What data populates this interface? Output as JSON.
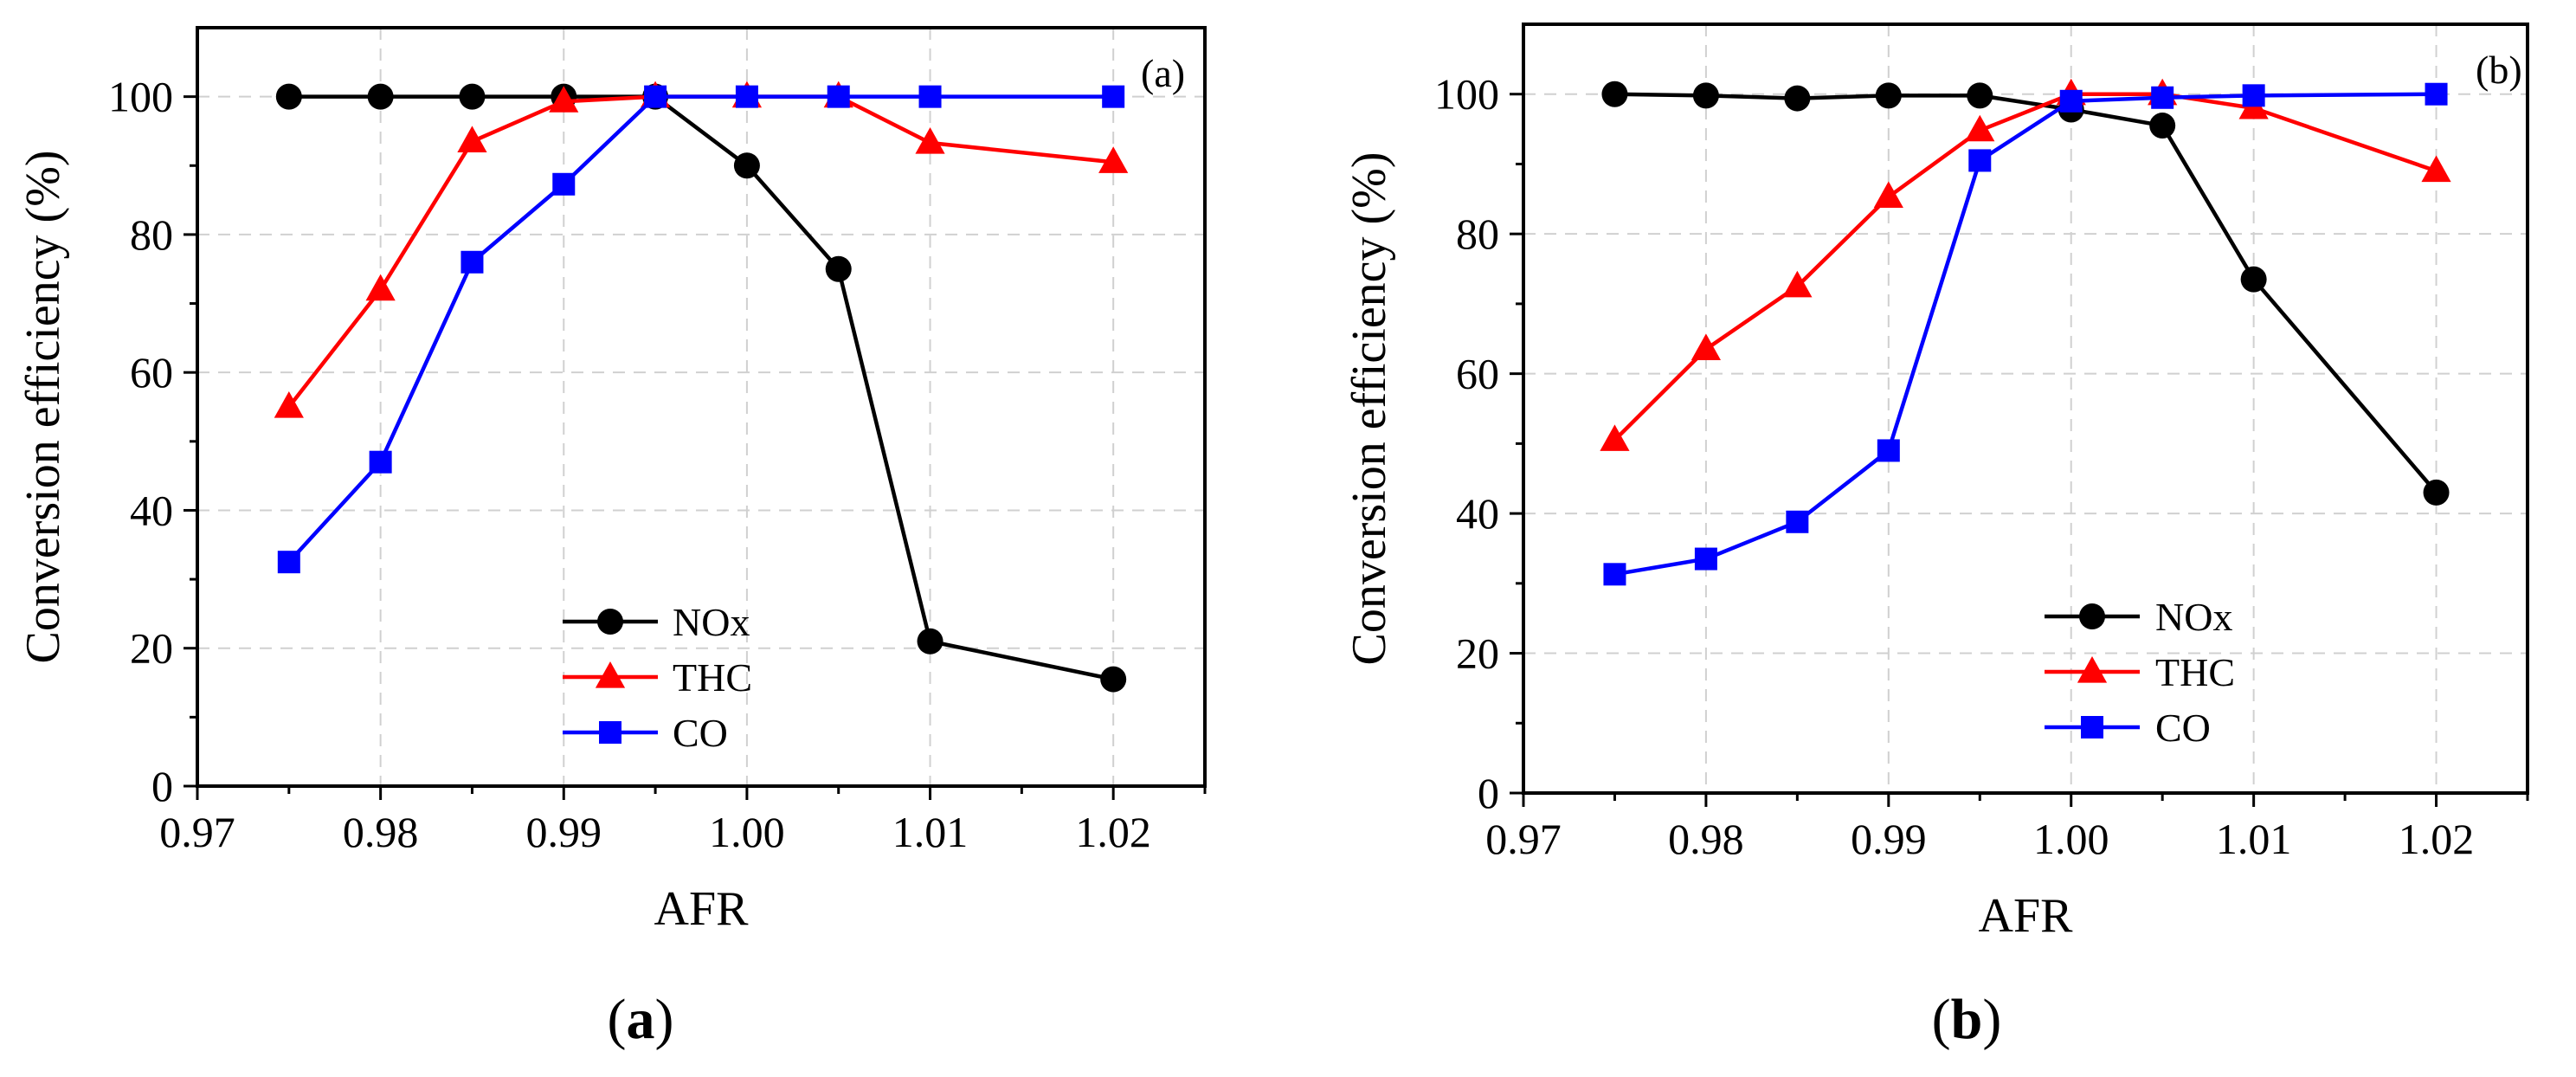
{
  "chart_data": [
    {
      "type": "line",
      "panel_label": "(a)",
      "caption": {
        "open": "(",
        "letter": "a",
        "close": ")"
      },
      "xlabel": "AFR",
      "ylabel": "Conversion efficiency (%)",
      "xlim": [
        0.97,
        1.025
      ],
      "ylim": [
        0,
        110
      ],
      "xticks": [
        0.97,
        0.98,
        0.99,
        1.0,
        1.01,
        1.02
      ],
      "xtick_labels": [
        "0.97",
        "0.98",
        "0.99",
        "1.00",
        "1.01",
        "1.02"
      ],
      "yticks": [
        0,
        20,
        40,
        60,
        80,
        100
      ],
      "ytick_labels": [
        "0",
        "20",
        "40",
        "60",
        "80",
        "100"
      ],
      "grid": true,
      "legend_position": "bottom-center",
      "x": [
        0.975,
        0.98,
        0.985,
        0.99,
        0.995,
        1.0,
        1.005,
        1.01,
        1.02
      ],
      "series": [
        {
          "name": "NOx",
          "color": "#000000",
          "marker": "circle",
          "values": [
            100,
            100,
            100,
            100,
            100,
            90,
            75,
            21,
            15.5
          ]
        },
        {
          "name": "THC",
          "color": "#ff0000",
          "marker": "triangle",
          "values": [
            55,
            72,
            93.5,
            99.3,
            100,
            100,
            100,
            93.3,
            90.5
          ]
        },
        {
          "name": "CO",
          "color": "#0000ff",
          "marker": "square",
          "values": [
            32.5,
            47,
            76,
            87.3,
            100,
            100,
            100,
            100,
            100
          ]
        }
      ]
    },
    {
      "type": "line",
      "panel_label": "(b)",
      "caption": {
        "open": "(",
        "letter": "b",
        "close": ")"
      },
      "xlabel": "AFR",
      "ylabel": "Conversion efficiency (%)",
      "xlim": [
        0.97,
        1.025
      ],
      "ylim": [
        0,
        110
      ],
      "xticks": [
        0.97,
        0.98,
        0.99,
        1.0,
        1.01,
        1.02
      ],
      "xtick_labels": [
        "0.97",
        "0.98",
        "0.99",
        "1.00",
        "1.01",
        "1.02"
      ],
      "yticks": [
        0,
        20,
        40,
        60,
        80,
        100
      ],
      "ytick_labels": [
        "0",
        "20",
        "40",
        "60",
        "80",
        "100"
      ],
      "grid": true,
      "legend_position": "bottom-center",
      "x": [
        0.975,
        0.98,
        0.985,
        0.99,
        0.995,
        1.0,
        1.005,
        1.01,
        1.02
      ],
      "series": [
        {
          "name": "NOx",
          "color": "#000000",
          "marker": "circle",
          "values": [
            100,
            99.8,
            99.4,
            99.8,
            99.8,
            97.8,
            95.5,
            73.5,
            43
          ]
        },
        {
          "name": "THC",
          "color": "#ff0000",
          "marker": "triangle",
          "values": [
            50.5,
            63.5,
            72.5,
            85.3,
            94.8,
            100,
            100,
            98,
            89
          ]
        },
        {
          "name": "CO",
          "color": "#0000ff",
          "marker": "square",
          "values": [
            31.3,
            33.5,
            38.8,
            49,
            90.5,
            99,
            99.5,
            99.8,
            100
          ]
        }
      ]
    }
  ]
}
